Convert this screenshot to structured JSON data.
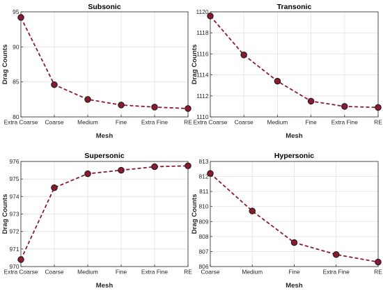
{
  "chart_data": [
    {
      "type": "line",
      "title": "Subsonic",
      "xlabel": "Mesh",
      "ylabel": "Drag Counts",
      "categories": [
        "Extra Coarse",
        "Coarse",
        "Medium",
        "Fine",
        "Extra Fine",
        "RE"
      ],
      "values": [
        94.2,
        84.6,
        82.5,
        81.7,
        81.4,
        81.2
      ],
      "ylim": [
        80,
        95
      ],
      "yticks": [
        "80",
        "85",
        "90",
        "95"
      ],
      "grid": true,
      "color": "#8b1a2e"
    },
    {
      "type": "line",
      "title": "Transonic",
      "xlabel": "Mesh",
      "ylabel": "Drag Counts",
      "categories": [
        "Extra Coarse",
        "Coarse",
        "Medium",
        "Fine",
        "Extra Fine",
        "RE"
      ],
      "values": [
        1119.6,
        1115.9,
        1113.4,
        1111.5,
        1111.0,
        1110.9
      ],
      "ylim": [
        1110,
        1120
      ],
      "yticks": [
        "1110",
        "1112",
        "1114",
        "1116",
        "1118",
        "1120"
      ],
      "grid": true,
      "color": "#8b1a2e"
    },
    {
      "type": "line",
      "title": "Supersonic",
      "xlabel": "Mesh",
      "ylabel": "Drag Counts",
      "categories": [
        "Extra Coarse",
        "Coarse",
        "Medium",
        "Fine",
        "Extra Fine",
        "RE"
      ],
      "values": [
        970.4,
        974.5,
        975.3,
        975.5,
        975.7,
        975.75
      ],
      "ylim": [
        970,
        976
      ],
      "yticks": [
        "970",
        "971",
        "972",
        "973",
        "974",
        "975",
        "976"
      ],
      "grid": true,
      "color": "#8b1a2e"
    },
    {
      "type": "line",
      "title": "Hypersonic",
      "xlabel": "Mesh",
      "ylabel": "Drag Counts",
      "categories": [
        "Coarse",
        "Medium",
        "Fine",
        "Extra Fine",
        "RE"
      ],
      "values": [
        812.2,
        809.7,
        807.6,
        806.8,
        806.3
      ],
      "ylim": [
        806,
        813
      ],
      "yticks": [
        "806",
        "807",
        "808",
        "809",
        "810",
        "811",
        "812",
        "813"
      ],
      "grid": true,
      "color": "#8b1a2e"
    }
  ]
}
